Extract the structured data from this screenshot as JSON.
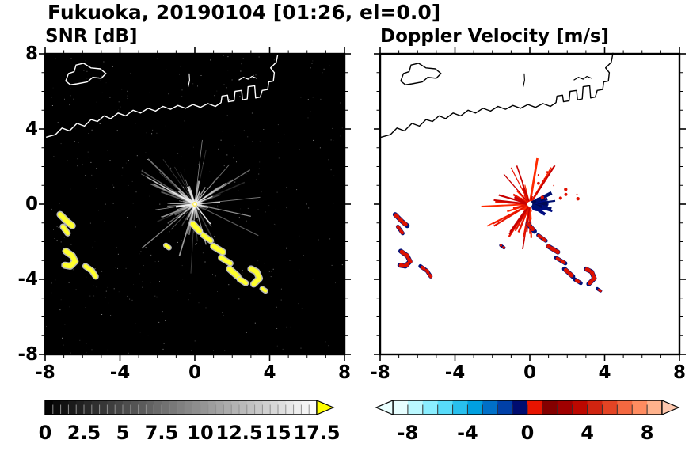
{
  "title": "Fukuoka, 20190104 [01:26, el=0.0]",
  "panels": {
    "snr": {
      "title": "SNR [dB]"
    },
    "doppler": {
      "title": "Doppler Velocity [m/s]"
    }
  },
  "chart_data": [
    {
      "type": "heatmap",
      "title": "SNR [dB]",
      "xlim": [
        -8,
        8
      ],
      "ylim": [
        -8,
        8
      ],
      "x_ticks": [
        -8,
        -4,
        0,
        4,
        8
      ],
      "y_ticks": [
        8,
        4,
        0,
        -4,
        -8
      ],
      "minor_tick_step": 1,
      "background": "#000000",
      "coast_color": "#ffffff",
      "echo_color": "#ffff2e",
      "echo_fringe_color": "#d8d8d8",
      "radar_center": [
        0,
        0
      ],
      "clutter_spokes": {
        "count": 95,
        "max_radius_units": 3.6,
        "seed": 11
      },
      "core_spokes": {
        "count": 18,
        "max_radius_units": 1.3
      },
      "noise_speckles": {
        "count": 380,
        "seed": 5
      },
      "colorbar": {
        "range": [
          0,
          17.5
        ],
        "label_values": [
          0,
          2.5,
          5,
          7.5,
          10,
          12.5,
          15,
          17.5
        ],
        "segments": 35,
        "tick_step": 0.5,
        "colormap": "grayscale",
        "over_arrow_color": "#ffff00"
      }
    },
    {
      "type": "heatmap",
      "title": "Doppler Velocity [m/s]",
      "xlim": [
        -8,
        8
      ],
      "ylim": [
        -8,
        8
      ],
      "x_ticks": [
        -8,
        -4,
        0,
        4,
        8
      ],
      "minor_tick_step": 1,
      "background": "#ffffff",
      "coast_color": "#000000",
      "echo_base_color": "#00107a",
      "echo_overlay_color": "#dd1100",
      "red_fan": {
        "count": 60,
        "angle_start_deg": 55,
        "angle_sweep_deg": 230,
        "max_radius_units": 2.45,
        "seed": 23,
        "colors": [
          "#e81400",
          "#c80000",
          "#ff2a00"
        ]
      },
      "blue_wedge": {
        "count": 30,
        "angle_start_deg": -38,
        "angle_sweep_deg": 70,
        "max_radius_units": 1.25,
        "colors": [
          "#000d80",
          "#001070",
          "#000955"
        ]
      },
      "speckles": {
        "count": 14,
        "x_range": [
          0.3,
          2.7
        ],
        "y_range": [
          0.1,
          1.75
        ],
        "color": "#e01000"
      },
      "colorbar": {
        "range": [
          -9,
          9
        ],
        "label_values": [
          -8,
          -4,
          0,
          4,
          8
        ],
        "tick_step": 1,
        "colormap": "cyan-blue-red diverging",
        "under_arrow_color": "#eaffff",
        "over_arrow_color": "#ffc8ae",
        "colors": [
          "#e6feff",
          "#baf8ff",
          "#8aeeff",
          "#58dcfa",
          "#28c0ee",
          "#00a0e0",
          "#0070c8",
          "#0040a8",
          "#000d70",
          "#e81400",
          "#840000",
          "#a00000",
          "#bc0800",
          "#d02410",
          "#e44424",
          "#f46840",
          "#ff8c60",
          "#ffb28c"
        ]
      }
    }
  ],
  "geo": {
    "coast_main": [
      [
        -8,
        3.55
      ],
      [
        -7.45,
        3.7
      ],
      [
        -7.1,
        4.05
      ],
      [
        -6.7,
        3.9
      ],
      [
        -6.3,
        4.3
      ],
      [
        -5.9,
        4.15
      ],
      [
        -5.55,
        4.5
      ],
      [
        -5.2,
        4.4
      ],
      [
        -4.85,
        4.7
      ],
      [
        -4.5,
        4.55
      ],
      [
        -4.1,
        4.85
      ],
      [
        -3.7,
        4.7
      ],
      [
        -3.3,
        5.0
      ],
      [
        -2.9,
        4.85
      ],
      [
        -2.5,
        5.1
      ],
      [
        -2.1,
        4.95
      ],
      [
        -1.7,
        5.2
      ],
      [
        -1.3,
        5.05
      ],
      [
        -0.9,
        5.25
      ],
      [
        -0.5,
        5.1
      ],
      [
        -0.1,
        5.3
      ],
      [
        0.3,
        5.15
      ],
      [
        0.7,
        5.35
      ],
      [
        1.1,
        5.2
      ],
      [
        1.4,
        5.4
      ],
      [
        1.45,
        5.75
      ],
      [
        1.75,
        5.8
      ],
      [
        1.8,
        5.45
      ],
      [
        2.1,
        5.5
      ],
      [
        2.15,
        6.0
      ],
      [
        2.5,
        6.05
      ],
      [
        2.55,
        5.55
      ],
      [
        2.8,
        5.6
      ],
      [
        2.85,
        6.25
      ],
      [
        3.2,
        6.3
      ],
      [
        3.25,
        5.65
      ],
      [
        3.5,
        5.7
      ],
      [
        3.6,
        6.05
      ],
      [
        3.9,
        6.1
      ],
      [
        3.95,
        6.5
      ],
      [
        4.2,
        6.55
      ],
      [
        4.25,
        7.0
      ],
      [
        4.05,
        7.25
      ],
      [
        4.35,
        7.55
      ],
      [
        4.45,
        8.05
      ]
    ],
    "island": [
      [
        -6.9,
        6.55
      ],
      [
        -6.75,
        6.95
      ],
      [
        -6.45,
        7.05
      ],
      [
        -6.35,
        7.4
      ],
      [
        -5.95,
        7.5
      ],
      [
        -5.55,
        7.25
      ],
      [
        -5.05,
        7.2
      ],
      [
        -4.75,
        6.95
      ],
      [
        -5.0,
        6.7
      ],
      [
        -5.45,
        6.75
      ],
      [
        -5.75,
        6.5
      ],
      [
        -6.3,
        6.4
      ],
      [
        -6.65,
        6.35
      ]
    ],
    "islet": [
      [
        -0.35,
        6.25
      ],
      [
        -0.28,
        6.6
      ],
      [
        -0.3,
        6.95
      ]
    ],
    "pier": [
      [
        2.35,
        6.6
      ],
      [
        2.6,
        6.75
      ],
      [
        2.85,
        6.65
      ],
      [
        3.05,
        6.8
      ],
      [
        3.3,
        6.7
      ]
    ]
  },
  "echoes": [
    {
      "pts": [
        [
          -7.2,
          -0.55
        ],
        [
          -6.85,
          -0.9
        ],
        [
          -6.55,
          -1.15
        ]
      ],
      "w": 6
    },
    {
      "pts": [
        [
          -7.05,
          -1.2
        ],
        [
          -6.8,
          -1.55
        ]
      ],
      "w": 5
    },
    {
      "pts": [
        [
          -6.9,
          -2.5
        ],
        [
          -6.55,
          -2.75
        ],
        [
          -6.4,
          -3.05
        ],
        [
          -6.65,
          -3.3
        ],
        [
          -6.95,
          -3.25
        ]
      ],
      "w": 6
    },
    {
      "pts": [
        [
          -5.85,
          -3.3
        ],
        [
          -5.5,
          -3.55
        ],
        [
          -5.3,
          -3.85
        ]
      ],
      "w": 5
    },
    {
      "pts": [
        [
          -1.55,
          -2.2
        ],
        [
          -1.38,
          -2.32
        ]
      ],
      "w": 4
    },
    {
      "pts": [
        [
          -0.1,
          -1.05
        ],
        [
          0.25,
          -1.45
        ]
      ],
      "w": 6
    },
    {
      "pts": [
        [
          0.45,
          -1.65
        ],
        [
          0.85,
          -1.95
        ]
      ],
      "w": 5
    },
    {
      "pts": [
        [
          1.0,
          -2.25
        ],
        [
          1.5,
          -2.55
        ]
      ],
      "w": 6
    },
    {
      "pts": [
        [
          1.4,
          -2.85
        ],
        [
          1.9,
          -3.15
        ]
      ],
      "w": 5
    },
    {
      "pts": [
        [
          1.85,
          -3.45
        ],
        [
          2.3,
          -3.85
        ]
      ],
      "w": 6
    },
    {
      "pts": [
        [
          2.4,
          -4.0
        ],
        [
          2.72,
          -4.2
        ]
      ],
      "w": 5
    },
    {
      "pts": [
        [
          3.0,
          -3.45
        ],
        [
          3.3,
          -3.6
        ],
        [
          3.45,
          -3.95
        ],
        [
          3.15,
          -4.25
        ]
      ],
      "w": 6
    },
    {
      "pts": [
        [
          3.6,
          -4.5
        ],
        [
          3.78,
          -4.62
        ]
      ],
      "w": 4
    }
  ]
}
